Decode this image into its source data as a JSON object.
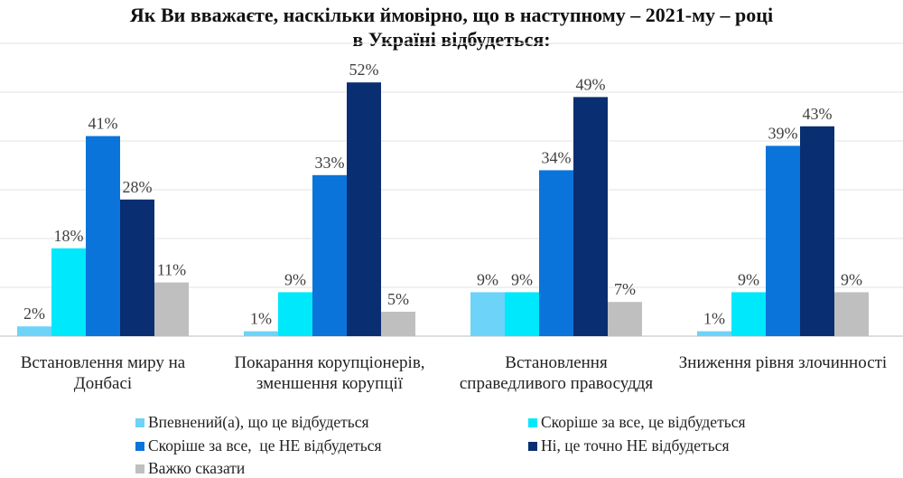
{
  "chart_data": {
    "type": "bar",
    "title": "Як Ви вважаєте, наскільки ймовірно, що в наступному – 2021-му – році в Україні відбудеться:",
    "title_lines": [
      "Як Ви вважаєте, наскільки ймовірно, що в наступному – 2021-му – році",
      "в Україні відбудеться:"
    ],
    "categories": [
      [
        "Встановлення миру на",
        "Донбасі"
      ],
      [
        "Покарання корупціонерів,",
        "зменшення корупції"
      ],
      [
        "Встановлення",
        "справедливого правосуддя"
      ],
      [
        "Зниження рівня злочинності"
      ]
    ],
    "series": [
      {
        "name": "Впевнений(а), що це відбудеться",
        "color": "#6DD3F8",
        "values": [
          2,
          1,
          9,
          1
        ]
      },
      {
        "name": "Скоріше за все, це відбудеться",
        "color": "#00E8FC",
        "values": [
          18,
          9,
          9,
          9
        ]
      },
      {
        "name": "Скоріше за все,  це НЕ відбудеться",
        "color": "#0B74DA",
        "values": [
          41,
          33,
          34,
          39
        ]
      },
      {
        "name": "Ні, це точно НЕ відбудеться",
        "color": "#0A2E72",
        "values": [
          28,
          52,
          49,
          43
        ]
      },
      {
        "name": "Важко сказати",
        "color": "#BFBFBF",
        "values": [
          11,
          5,
          7,
          9
        ]
      }
    ],
    "value_suffix": "%",
    "ylim": [
      0,
      60
    ],
    "grid": true,
    "legend_position": "bottom",
    "xlabel": "",
    "ylabel": ""
  }
}
